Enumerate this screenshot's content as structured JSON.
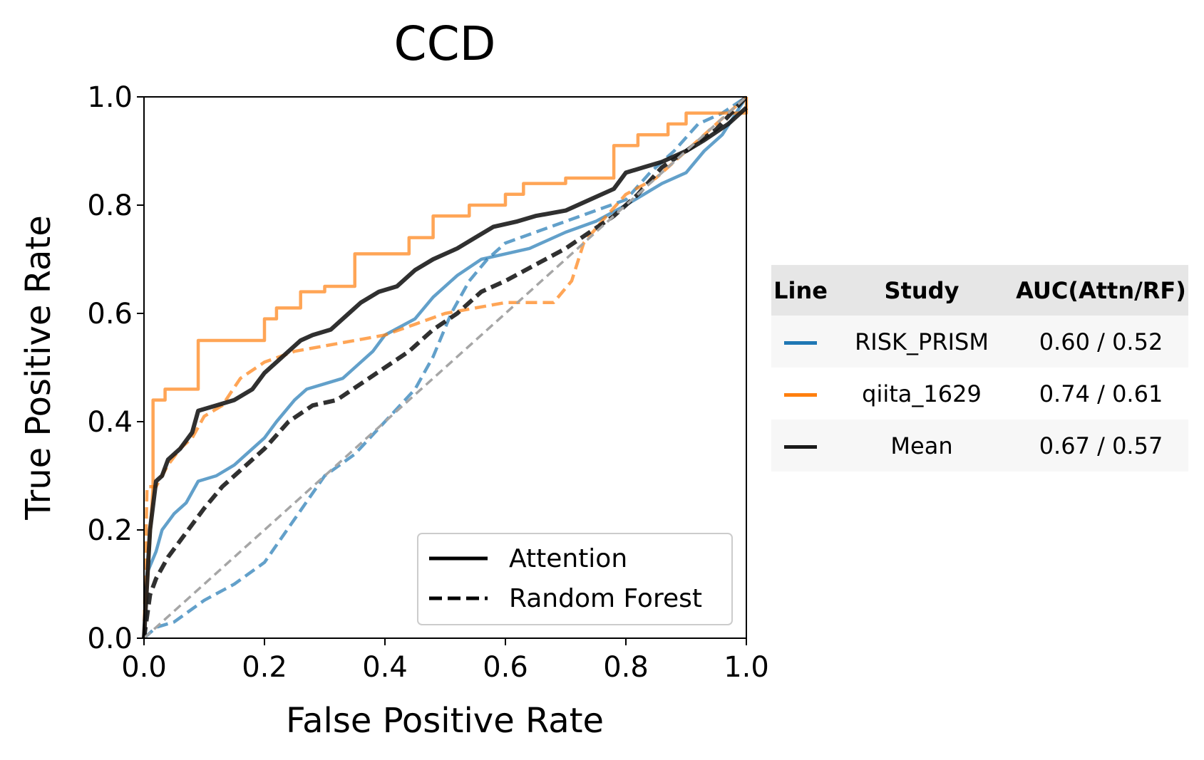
{
  "chart_data": {
    "type": "line",
    "title": "CCD",
    "xlabel": "False Positive Rate",
    "ylabel": "True Positive Rate",
    "xlim": [
      0,
      1
    ],
    "ylim": [
      0,
      1
    ],
    "xticks": [
      "0.0",
      "0.2",
      "0.4",
      "0.6",
      "0.8",
      "1.0"
    ],
    "yticks": [
      "0.0",
      "0.2",
      "0.4",
      "0.6",
      "0.8",
      "1.0"
    ],
    "grid": false,
    "legend": {
      "placement": "lower-right",
      "entries": [
        {
          "label": "Attention",
          "style": "solid"
        },
        {
          "label": "Random Forest",
          "style": "dashed"
        }
      ]
    },
    "series": [
      {
        "study": "RISK_PRISM",
        "model": "Attention",
        "color": "#1f77b4",
        "style": "solid",
        "x": [
          0,
          0.005,
          0.02,
          0.03,
          0.05,
          0.07,
          0.09,
          0.12,
          0.15,
          0.17,
          0.2,
          0.22,
          0.25,
          0.27,
          0.3,
          0.33,
          0.35,
          0.38,
          0.4,
          0.45,
          0.48,
          0.52,
          0.56,
          0.6,
          0.64,
          0.66,
          0.7,
          0.75,
          0.8,
          0.83,
          0.86,
          0.9,
          0.93,
          0.96,
          1.0
        ],
        "y": [
          0,
          0.12,
          0.16,
          0.2,
          0.23,
          0.25,
          0.29,
          0.3,
          0.32,
          0.34,
          0.37,
          0.4,
          0.44,
          0.46,
          0.47,
          0.48,
          0.5,
          0.53,
          0.56,
          0.59,
          0.63,
          0.67,
          0.7,
          0.71,
          0.72,
          0.73,
          0.75,
          0.77,
          0.8,
          0.82,
          0.84,
          0.86,
          0.9,
          0.93,
          1.0
        ]
      },
      {
        "study": "RISK_PRISM",
        "model": "Random Forest",
        "color": "#1f77b4",
        "style": "dashed",
        "x": [
          0,
          0.02,
          0.05,
          0.1,
          0.15,
          0.2,
          0.25,
          0.3,
          0.35,
          0.4,
          0.45,
          0.48,
          0.51,
          0.54,
          0.57,
          0.6,
          0.65,
          0.7,
          0.75,
          0.8,
          0.84,
          0.88,
          0.92,
          0.96,
          1.0
        ],
        "y": [
          0,
          0.02,
          0.03,
          0.07,
          0.1,
          0.14,
          0.22,
          0.3,
          0.34,
          0.4,
          0.46,
          0.52,
          0.6,
          0.66,
          0.7,
          0.73,
          0.75,
          0.77,
          0.79,
          0.81,
          0.86,
          0.9,
          0.95,
          0.97,
          1.0
        ]
      },
      {
        "study": "qiita_1629",
        "model": "Attention",
        "color": "#ff7f0e",
        "style": "solid",
        "x": [
          0,
          0.015,
          0.015,
          0.035,
          0.035,
          0.09,
          0.09,
          0.2,
          0.2,
          0.22,
          0.22,
          0.26,
          0.26,
          0.3,
          0.3,
          0.35,
          0.35,
          0.44,
          0.44,
          0.48,
          0.48,
          0.54,
          0.54,
          0.6,
          0.6,
          0.63,
          0.63,
          0.7,
          0.7,
          0.78,
          0.78,
          0.82,
          0.82,
          0.87,
          0.87,
          0.9,
          0.9,
          1.0,
          1.0
        ],
        "y": [
          0,
          0.28,
          0.44,
          0.44,
          0.46,
          0.46,
          0.55,
          0.55,
          0.59,
          0.59,
          0.61,
          0.61,
          0.64,
          0.64,
          0.65,
          0.65,
          0.71,
          0.71,
          0.74,
          0.74,
          0.78,
          0.78,
          0.8,
          0.8,
          0.82,
          0.82,
          0.84,
          0.84,
          0.85,
          0.85,
          0.91,
          0.91,
          0.93,
          0.93,
          0.95,
          0.95,
          0.97,
          0.97,
          1.0
        ]
      },
      {
        "study": "qiita_1629",
        "model": "Random Forest",
        "color": "#ff7f0e",
        "style": "dashed",
        "x": [
          0,
          0.005,
          0.02,
          0.04,
          0.06,
          0.08,
          0.1,
          0.13,
          0.16,
          0.2,
          0.25,
          0.3,
          0.35,
          0.4,
          0.45,
          0.5,
          0.55,
          0.6,
          0.65,
          0.68,
          0.71,
          0.73,
          0.76,
          0.8,
          0.85,
          0.9,
          0.95,
          1.0
        ],
        "y": [
          0,
          0.28,
          0.28,
          0.32,
          0.35,
          0.37,
          0.41,
          0.43,
          0.48,
          0.51,
          0.53,
          0.54,
          0.55,
          0.56,
          0.58,
          0.6,
          0.61,
          0.62,
          0.62,
          0.62,
          0.66,
          0.73,
          0.77,
          0.82,
          0.85,
          0.9,
          0.95,
          1.0
        ]
      },
      {
        "study": "Mean",
        "model": "Attention",
        "color": "#1a1a1a",
        "style": "solid",
        "x": [
          0,
          0.01,
          0.02,
          0.03,
          0.04,
          0.06,
          0.08,
          0.09,
          0.12,
          0.15,
          0.18,
          0.2,
          0.23,
          0.26,
          0.28,
          0.31,
          0.34,
          0.36,
          0.39,
          0.42,
          0.45,
          0.48,
          0.52,
          0.55,
          0.58,
          0.62,
          0.65,
          0.7,
          0.74,
          0.78,
          0.8,
          0.83,
          0.86,
          0.9,
          0.93,
          0.97,
          1.0
        ],
        "y": [
          0,
          0.2,
          0.29,
          0.3,
          0.33,
          0.35,
          0.38,
          0.42,
          0.43,
          0.44,
          0.46,
          0.49,
          0.52,
          0.55,
          0.56,
          0.57,
          0.6,
          0.62,
          0.64,
          0.65,
          0.68,
          0.7,
          0.72,
          0.74,
          0.76,
          0.77,
          0.78,
          0.79,
          0.81,
          0.83,
          0.86,
          0.87,
          0.88,
          0.9,
          0.92,
          0.95,
          0.98
        ]
      },
      {
        "study": "Mean",
        "model": "Random Forest",
        "color": "#1a1a1a",
        "style": "dashed",
        "x": [
          0,
          0.01,
          0.02,
          0.04,
          0.06,
          0.08,
          0.1,
          0.13,
          0.16,
          0.2,
          0.24,
          0.28,
          0.32,
          0.36,
          0.4,
          0.44,
          0.48,
          0.52,
          0.56,
          0.6,
          0.65,
          0.7,
          0.74,
          0.78,
          0.82,
          0.86,
          0.9,
          0.95,
          1.0
        ],
        "y": [
          0,
          0.08,
          0.11,
          0.15,
          0.18,
          0.21,
          0.24,
          0.28,
          0.31,
          0.35,
          0.4,
          0.43,
          0.44,
          0.47,
          0.5,
          0.53,
          0.57,
          0.6,
          0.64,
          0.66,
          0.69,
          0.72,
          0.75,
          0.78,
          0.82,
          0.87,
          0.9,
          0.94,
          1.0
        ]
      },
      {
        "study": "chance",
        "model": "",
        "color": "#a6a6a6",
        "style": "dashed",
        "x": [
          0,
          1
        ],
        "y": [
          0,
          1
        ]
      }
    ]
  },
  "auc_table": {
    "headers": [
      "Line",
      "Study",
      "AUC(Attn/RF)"
    ],
    "rows": [
      {
        "color": "#1f77b4",
        "study": "RISK_PRISM",
        "auc": "0.60 / 0.52"
      },
      {
        "color": "#ff7f0e",
        "study": "qiita_1629",
        "auc": "0.74 / 0.61"
      },
      {
        "color": "#1a1a1a",
        "study": "Mean",
        "auc": "0.67 / 0.57"
      }
    ]
  }
}
